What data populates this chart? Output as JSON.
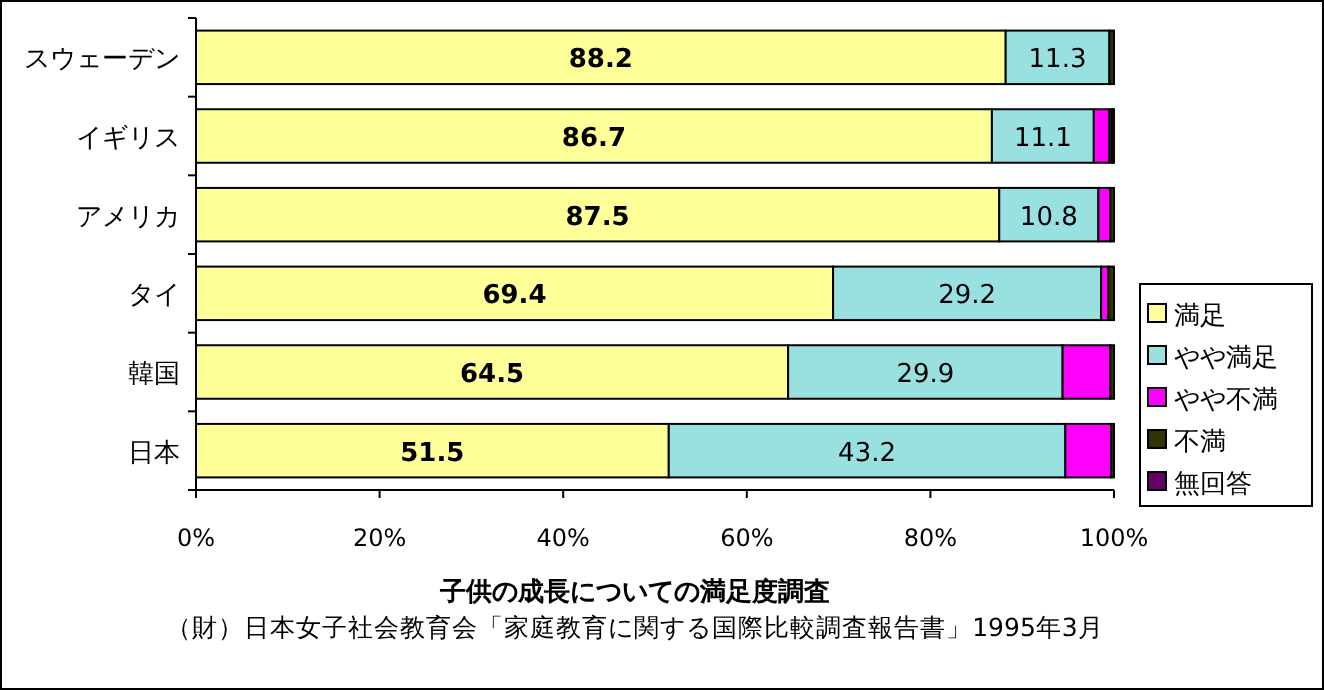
{
  "chart_data": {
    "type": "bar",
    "orientation": "horizontal",
    "stacked": true,
    "title": "子供の成長についての満足度調査",
    "annotations": [
      "（財）日本女子社会教育会「家庭教育に関する国際比較調査報告書」1995年3月"
    ],
    "categories": [
      "スウェーデン",
      "イギリス",
      "アメリカ",
      "タイ",
      "韓国",
      "日本"
    ],
    "series": [
      {
        "name": "満足",
        "color": "#ffff99",
        "values": [
          88.2,
          86.7,
          87.5,
          69.4,
          64.5,
          51.5
        ],
        "value_labels": [
          "88.2",
          "86.7",
          "87.5",
          "69.4",
          "64.5",
          "51.5"
        ]
      },
      {
        "name": "やや満足",
        "color": "#99e0e0",
        "values": [
          11.3,
          11.1,
          10.8,
          29.2,
          29.9,
          43.2
        ],
        "value_labels": [
          "11.3",
          "11.1",
          "10.8",
          "29.2",
          "29.9",
          "43.2"
        ]
      },
      {
        "name": "やや不満",
        "color": "#ff00ff",
        "values": [
          0.0,
          1.7,
          1.3,
          0.8,
          5.2,
          5.0
        ]
      },
      {
        "name": "不満",
        "color": "#333300",
        "values": [
          0.5,
          0.3,
          0.4,
          0.6,
          0.4,
          0.3
        ]
      },
      {
        "name": "無回答",
        "color": "#660066",
        "values": [
          0.0,
          0.2,
          0.0,
          0.0,
          0.0,
          0.0
        ]
      }
    ],
    "xlim": [
      0,
      100
    ],
    "xticks": [
      {
        "value": 0,
        "label": "0%"
      },
      {
        "value": 20,
        "label": "20%"
      },
      {
        "value": 40,
        "label": "40%"
      },
      {
        "value": 60,
        "label": "60%"
      },
      {
        "value": 80,
        "label": "80%"
      },
      {
        "value": 100,
        "label": "100%"
      }
    ],
    "grid": false,
    "legend": "right"
  }
}
